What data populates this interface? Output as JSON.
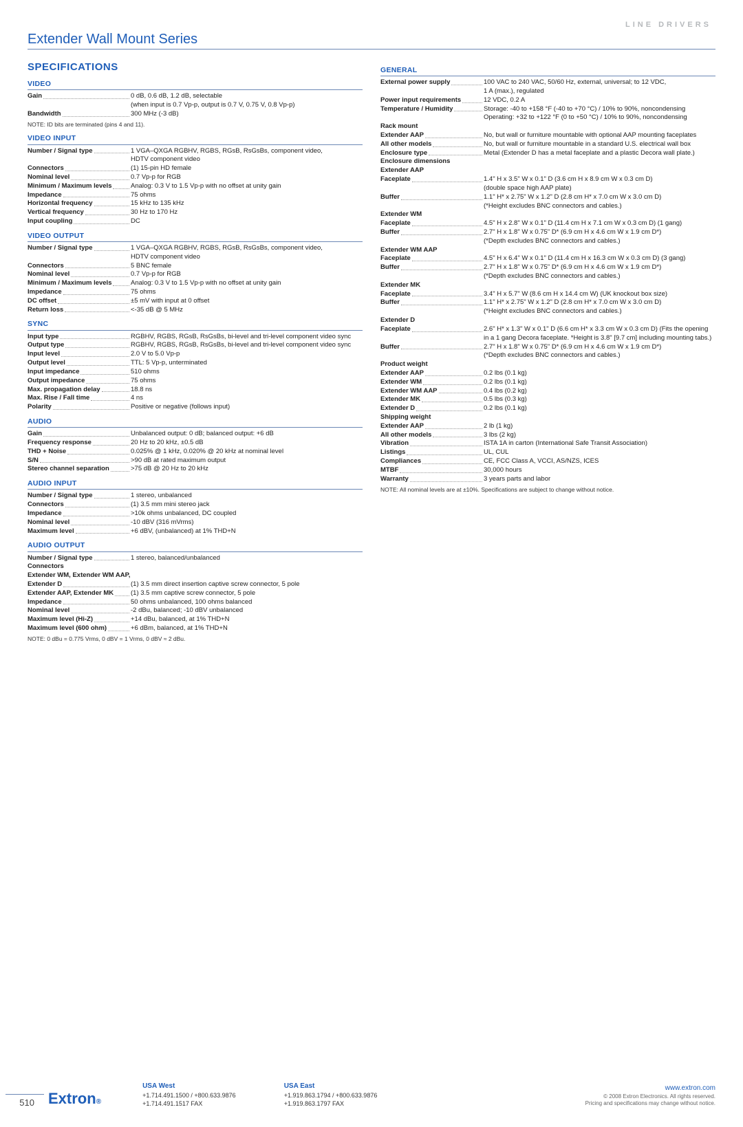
{
  "brand_line": "LINE DRIVERS",
  "title": "Extender Wall Mount Series",
  "spec_heading": "SPECIFICATIONS",
  "left_sections": [
    {
      "head": "VIDEO",
      "rows": [
        {
          "l": "Gain",
          "v": "0 dB, 0.6 dB, 1.2 dB, selectable"
        },
        {
          "l": "",
          "v": "(when input is 0.7 Vp-p, output is 0.7 V, 0.75 V, 0.8 Vp-p)"
        },
        {
          "l": "Bandwidth",
          "v": "300 MHz (-3 dB)"
        }
      ],
      "note": "NOTE: ID bits are terminated (pins 4 and 11)."
    },
    {
      "head": "VIDEO INPUT",
      "rows": [
        {
          "l": "Number / Signal type",
          "v": "1 VGA–QXGA RGBHV, RGBS, RGsB, RsGsBs, component video,"
        },
        {
          "l": "",
          "v": "HDTV component video"
        },
        {
          "l": "Connectors",
          "v": "(1) 15-pin HD female"
        },
        {
          "l": "Nominal level",
          "v": "0.7 Vp-p for RGB"
        },
        {
          "l": "Minimum / Maximum levels",
          "v": "Analog: 0.3 V to 1.5 Vp-p with no offset at unity gain"
        },
        {
          "l": "Impedance",
          "v": "75 ohms"
        },
        {
          "l": "Horizontal frequency",
          "v": "15 kHz to 135 kHz"
        },
        {
          "l": "Vertical frequency",
          "v": "30 Hz to 170 Hz"
        },
        {
          "l": "Input coupling",
          "v": "DC"
        }
      ]
    },
    {
      "head": "VIDEO OUTPUT",
      "rows": [
        {
          "l": "Number / Signal type",
          "v": "1 VGA–QXGA RGBHV, RGBS, RGsB, RsGsBs, component video,"
        },
        {
          "l": "",
          "v": "HDTV component video"
        },
        {
          "l": "Connectors",
          "v": "5 BNC female"
        },
        {
          "l": "Nominal level",
          "v": "0.7 Vp-p for RGB"
        },
        {
          "l": "Minimum / Maximum levels",
          "v": "Analog: 0.3 V to 1.5 Vp-p with no offset at unity gain"
        },
        {
          "l": "Impedance",
          "v": "75 ohms"
        },
        {
          "l": "DC offset",
          "v": "±5 mV with input at 0 offset"
        },
        {
          "l": "Return loss",
          "v": "<-35 dB @ 5 MHz"
        }
      ]
    },
    {
      "head": "SYNC",
      "rows": [
        {
          "l": "Input type",
          "v": "RGBHV, RGBS, RGsB, RsGsBs, bi-level and tri-level component video sync"
        },
        {
          "l": "Output type",
          "v": "RGBHV, RGBS, RGsB, RsGsBs, bi-level and tri-level component video sync"
        },
        {
          "l": "Input level",
          "v": "2.0 V to 5.0 Vp-p"
        },
        {
          "l": "Output level",
          "v": "TTL: 5 Vp-p, unterminated"
        },
        {
          "l": "Input impedance",
          "v": "510 ohms"
        },
        {
          "l": "Output impedance",
          "v": "75 ohms"
        },
        {
          "l": "Max. propagation delay",
          "v": "18.8 ns"
        },
        {
          "l": "Max. Rise / Fall time",
          "v": "4 ns"
        },
        {
          "l": "Polarity",
          "v": "Positive or negative (follows input)"
        }
      ]
    },
    {
      "head": "AUDIO",
      "rows": [
        {
          "l": "Gain",
          "v": "Unbalanced output: 0 dB;  balanced output: +6 dB"
        },
        {
          "l": "Frequency response",
          "v": "20 Hz to 20 kHz, ±0.5 dB"
        },
        {
          "l": "THD + Noise",
          "v": "0.025% @ 1 kHz, 0.020% @ 20 kHz at nominal level"
        },
        {
          "l": "S/N",
          "v": ">90 dB at rated maximum output"
        },
        {
          "l": "Stereo channel separation",
          "v": ">75 dB @ 20 Hz to 20 kHz"
        }
      ]
    },
    {
      "head": "AUDIO INPUT",
      "rows": [
        {
          "l": "Number / Signal type",
          "v": "1 stereo, unbalanced"
        },
        {
          "l": "Connectors",
          "v": "(1) 3.5 mm mini stereo jack"
        },
        {
          "l": "Impedance",
          "v": ">10k ohms unbalanced, DC coupled"
        },
        {
          "l": "Nominal level",
          "v": "-10 dBV (316 mVrms)"
        },
        {
          "l": "Maximum level",
          "v": "+6 dBV, (unbalanced) at 1% THD+N"
        }
      ]
    },
    {
      "head": "AUDIO OUTPUT",
      "rows": [
        {
          "l": "Number / Signal type",
          "v": "1 stereo, balanced/unbalanced"
        },
        {
          "l": "Connectors",
          "plain": true,
          "v": ""
        },
        {
          "l": "Extender WM, Extender WM AAP,",
          "plain": true,
          "v": ""
        },
        {
          "l": "Extender D",
          "v": "(1) 3.5 mm direct insertion captive screw connector, 5 pole"
        },
        {
          "l": "Extender AAP, Extender MK",
          "v": "(1) 3.5 mm captive screw connector, 5 pole"
        },
        {
          "l": "Impedance",
          "v": "50 ohms unbalanced, 100 ohms balanced"
        },
        {
          "l": "Nominal level",
          "v": "-2 dBu, balanced; -10 dBV unbalanced"
        },
        {
          "l": "Maximum level (Hi-Z)",
          "v": "+14 dBu, balanced, at 1% THD+N"
        },
        {
          "l": "Maximum level (600 ohm)",
          "v": "+6 dBm, balanced, at 1% THD+N"
        }
      ],
      "note": "NOTE: 0 dBu = 0.775 Vrms, 0 dBV = 1 Vrms, 0 dBV ≈ 2 dBu."
    }
  ],
  "right_sections": [
    {
      "head": "GENERAL",
      "rows": [
        {
          "l": "External power supply",
          "v": "100 VAC to 240 VAC, 50/60 Hz, external, universal; to 12 VDC,"
        },
        {
          "l": "",
          "v": "1 A (max.), regulated"
        },
        {
          "l": "Power input requirements",
          "v": "12 VDC, 0.2 A"
        },
        {
          "l": "Temperature / Humidity",
          "v": "Storage: -40 to +158 °F (-40 to +70 °C) / 10% to 90%, noncondensing"
        },
        {
          "l": "",
          "v": "Operating: +32 to +122 °F (0 to +50 °C) / 10% to 90%, noncondensing"
        },
        {
          "l": "Rack mount",
          "plain": true,
          "v": ""
        },
        {
          "l": "Extender AAP",
          "v": "No, but wall or furniture mountable with optional AAP mounting faceplates"
        },
        {
          "l": "All other models",
          "v": "No, but wall or furniture mountable in a standard U.S. electrical wall box"
        },
        {
          "l": "Enclosure type",
          "v": "Metal (Extender D has a metal faceplate and a plastic Decora wall plate.)"
        },
        {
          "l": "Enclosure dimensions",
          "plain": true,
          "v": ""
        },
        {
          "l": "Extender AAP",
          "plain": true,
          "v": ""
        },
        {
          "l": "Faceplate",
          "v": "1.4\" H x  3.5\" W x 0.1\" D  (3.6 cm H x 8.9 cm W x 0.3 cm D)"
        },
        {
          "l": "",
          "v": "(double space high AAP plate)"
        },
        {
          "l": "Buffer",
          "v": "1.1\" H* x 2.75\" W x 1.2\" D  (2.8 cm H* x 7.0 cm W x 3.0 cm D)"
        },
        {
          "l": "",
          "v": "(*Height excludes BNC connectors and cables.)"
        },
        {
          "l": "Extender WM",
          "plain": true,
          "v": ""
        },
        {
          "l": "Faceplate",
          "v": "4.5\" H x 2.8\" W x 0.1\" D  (11.4 cm H x 7.1 cm W x 0.3 cm D)  (1 gang)"
        },
        {
          "l": "Buffer",
          "v": "2.7\" H x 1.8\" W x 0.75\" D*  (6.9 cm H x 4.6 cm W x 1.9 cm D*)"
        },
        {
          "l": "",
          "v": "(*Depth excludes BNC connectors and cables.)"
        },
        {
          "l": "Extender WM AAP",
          "plain": true,
          "v": ""
        },
        {
          "l": "Faceplate",
          "v": "4.5\" H x 6.4\" W x 0.1\" D  (11.4 cm H x 16.3 cm W x 0.3 cm D)  (3 gang)"
        },
        {
          "l": "Buffer",
          "v": "2.7\" H x 1.8\" W x 0.75\" D*  (6.9 cm H x 4.6 cm W x 1.9 cm D*)"
        },
        {
          "l": "",
          "v": "(*Depth excludes BNC connectors and cables.)"
        },
        {
          "l": "Extender MK",
          "plain": true,
          "v": ""
        },
        {
          "l": "Faceplate",
          "v": "3.4\" H x 5.7\" W  (8.6 cm H x 14.4 cm W)  (UK knockout box size)"
        },
        {
          "l": "Buffer",
          "v": "1.1\" H* x 2.75\" W x 1.2\" D (2.8 cm H* x 7.0 cm W x 3.0 cm D)"
        },
        {
          "l": "",
          "v": "(*Height excludes BNC connectors and cables.)"
        },
        {
          "l": "Extender D",
          "plain": true,
          "v": ""
        },
        {
          "l": "Faceplate",
          "v": "2.6\" H* x 1.3\" W x 0.1\" D  (6.6 cm H* x 3.3 cm W x 0.3 cm D)  (Fits the opening"
        },
        {
          "l": "",
          "v": "in a 1 gang Decora faceplate. *Height is 3.8\" [9.7 cm] including mounting tabs.)"
        },
        {
          "l": "Buffer",
          "v": "2.7\" H x 1.8\" W x 0.75\" D*  (6.9 cm H x 4.6 cm W x 1.9 cm D*)"
        },
        {
          "l": "",
          "v": "(*Depth excludes BNC connectors and cables.)"
        },
        {
          "l": "Product weight",
          "plain": true,
          "v": ""
        },
        {
          "l": "Extender AAP",
          "v": "0.2 lbs (0.1 kg)"
        },
        {
          "l": "Extender WM",
          "v": "0.2 lbs (0.1 kg)"
        },
        {
          "l": "Extender WM AAP",
          "v": "0.4 lbs (0.2 kg)"
        },
        {
          "l": "Extender MK",
          "v": "0.5 lbs (0.3 kg)"
        },
        {
          "l": "Extender D",
          "v": "0.2 lbs (0.1 kg)"
        },
        {
          "l": "Shipping weight",
          "plain": true,
          "v": ""
        },
        {
          "l": "Extender AAP",
          "v": "2 lb (1 kg)"
        },
        {
          "l": "All other models",
          "v": "3 lbs (2 kg)"
        },
        {
          "l": "Vibration",
          "v": "ISTA 1A in carton (International Safe Transit Association)"
        },
        {
          "l": "Listings",
          "v": "UL, CUL"
        },
        {
          "l": "Compliances",
          "v": "CE, FCC Class A, VCCI, AS/NZS, ICES"
        },
        {
          "l": "MTBF",
          "v": "30,000 hours"
        },
        {
          "l": "Warranty",
          "v": "3 years parts and labor"
        }
      ],
      "note": "NOTE: All nominal levels are at ±10%. Specifications are subject to change without notice."
    }
  ],
  "page_number": "510",
  "logo": "Extron",
  "footer": {
    "west": {
      "h": "USA West",
      "l1": "+1.714.491.1500 / +800.633.9876",
      "l2": "+1.714.491.1517 FAX"
    },
    "east": {
      "h": "USA East",
      "l1": "+1.919.863.1794 / +800.633.9876",
      "l2": "+1.919.863.1797 FAX"
    },
    "right": {
      "url": "www.extron.com",
      "l1": "© 2008 Extron Electronics. All rights reserved.",
      "l2": "Pricing and specifications may change without notice."
    }
  }
}
